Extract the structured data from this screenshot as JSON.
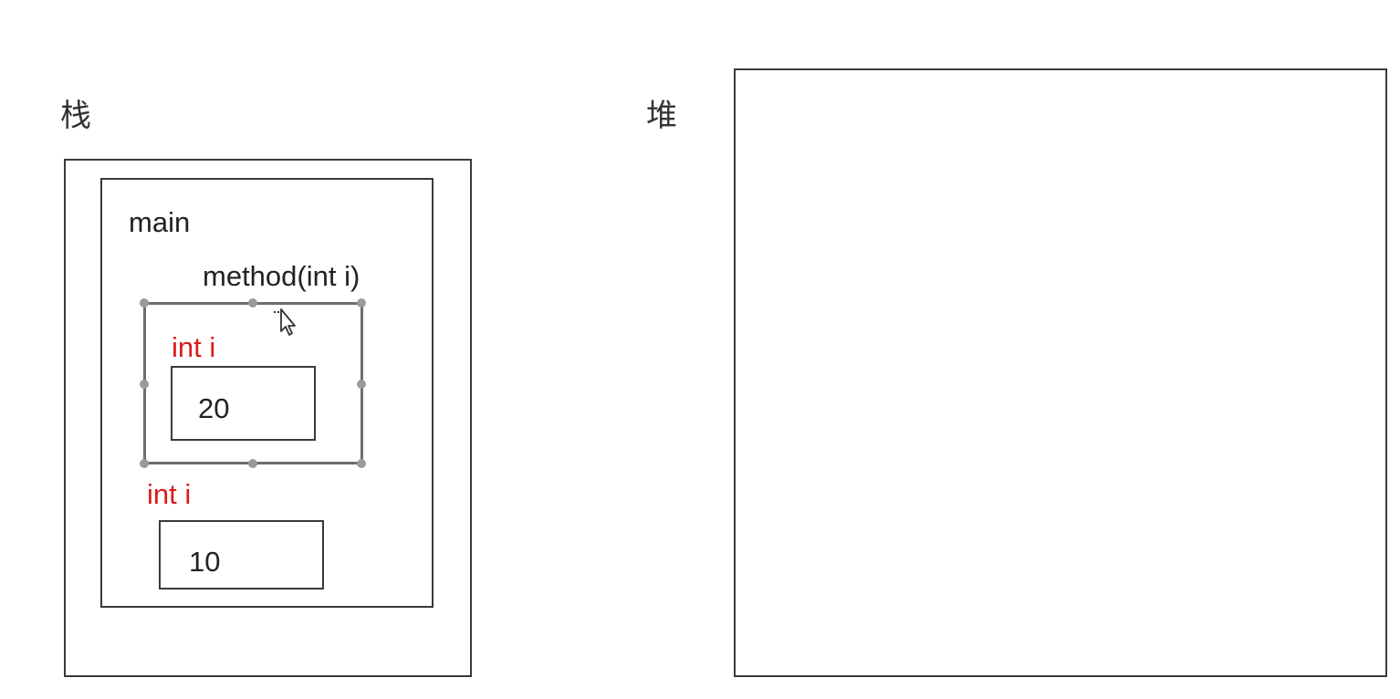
{
  "stack": {
    "title": "栈",
    "main_frame": {
      "label": "main",
      "method_frame": {
        "label": "method(int i)",
        "variable": "int i",
        "value": "20"
      },
      "variable": "int i",
      "value": "10"
    }
  },
  "heap": {
    "title": "堆"
  },
  "colors": {
    "variable_text": "#d81c1c",
    "border": "#3a3a3a",
    "selection": "#6d6d6d"
  },
  "icons": {
    "cursor": "move-cursor-icon"
  }
}
